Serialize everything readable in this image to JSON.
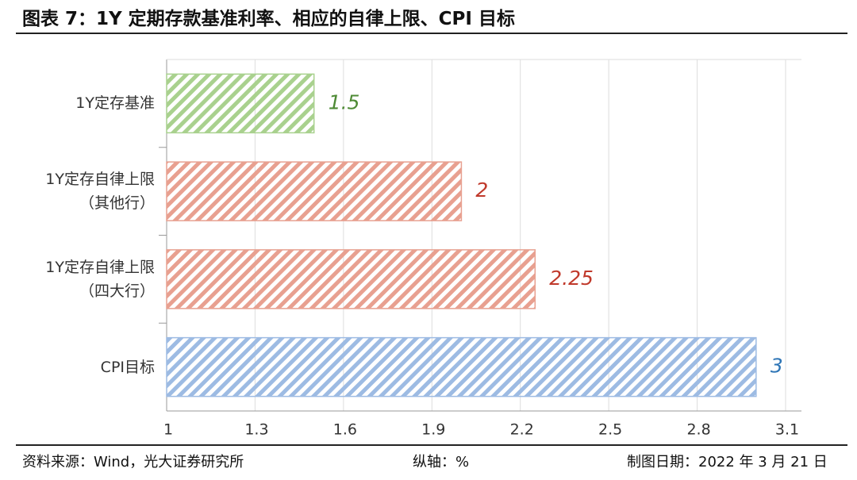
{
  "chart_data": {
    "type": "barh",
    "title": "图表 7：1Y 定期存款基准利率、相应的自律上限、CPI 目标",
    "categories": [
      "1Y定存基准",
      "1Y定存自律上限\n（其他行）",
      "1Y定存自律上限\n（四大行）",
      "CPI目标"
    ],
    "values": [
      1.5,
      2,
      2.25,
      3
    ],
    "colors": [
      "#a9d18e",
      "#e8a090",
      "#e8a090",
      "#9dbbe3"
    ],
    "label_colors": [
      "#4e8a35",
      "#c0392b",
      "#c0392b",
      "#2e75b6"
    ],
    "xlim": [
      1,
      3.1
    ],
    "xticks": [
      1,
      1.3,
      1.6,
      1.9,
      2.2,
      2.5,
      2.8,
      3.1
    ],
    "grid": true
  },
  "footer": {
    "source": "资料来源：Wind，光大证券研究所",
    "axis_note": "纵轴：%",
    "date": "制图日期：2022 年 3 月 21 日"
  }
}
